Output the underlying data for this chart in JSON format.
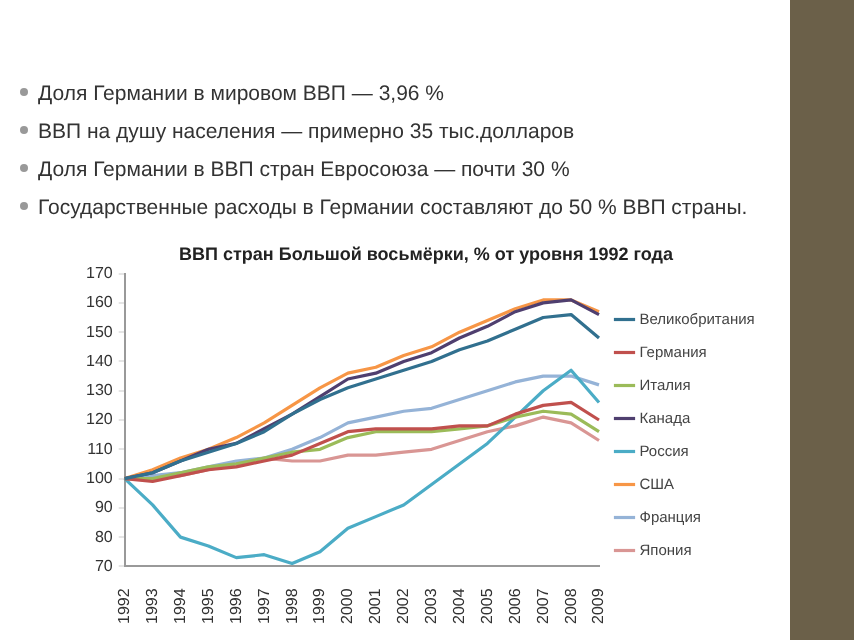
{
  "chart_data": {
    "type": "line",
    "title": "ВВП стран Большой восьмёрки, % от уровня 1992 года",
    "annotations": [
      "Доля Германии в мировом ВВП — 3,96 %",
      "ВВП на душу населения — примерно 35 тыс.долларов",
      "Доля Германии в ВВП стран Евросоюза — почти 30 %",
      "Государственные расходы в Германии составляют до 50 % ВВП страны."
    ],
    "categories": [
      "1992",
      "1993",
      "1994",
      "1995",
      "1996",
      "1997",
      "1998",
      "1999",
      "2000",
      "2001",
      "2002",
      "2003",
      "2004",
      "2005",
      "2006",
      "2007",
      "2008",
      "2009"
    ],
    "series": [
      {
        "name": "Великобритания",
        "color": "#31708f",
        "values": [
          100,
          102,
          106,
          109,
          112,
          116,
          122,
          127,
          131,
          134,
          137,
          140,
          144,
          147,
          151,
          155,
          156,
          148
        ]
      },
      {
        "name": "Германия",
        "color": "#c0504d",
        "values": [
          100,
          99,
          101,
          103,
          104,
          106,
          108,
          112,
          116,
          117,
          117,
          117,
          118,
          118,
          122,
          125,
          126,
          120
        ]
      },
      {
        "name": "Италия",
        "color": "#9bbb59",
        "values": [
          100,
          100,
          102,
          104,
          105,
          107,
          109,
          110,
          114,
          116,
          116,
          116,
          117,
          118,
          121,
          123,
          122,
          116
        ]
      },
      {
        "name": "Канада",
        "color": "#4f3f6f",
        "values": [
          100,
          102,
          106,
          110,
          112,
          117,
          122,
          128,
          134,
          136,
          140,
          143,
          148,
          152,
          157,
          160,
          161,
          156
        ]
      },
      {
        "name": "Россия",
        "color": "#4bacc6",
        "values": [
          100,
          91,
          80,
          77,
          73,
          74,
          71,
          75,
          83,
          87,
          91,
          98,
          105,
          112,
          121,
          130,
          137,
          126
        ]
      },
      {
        "name": "США",
        "color": "#f79646",
        "values": [
          100,
          103,
          107,
          110,
          114,
          119,
          125,
          131,
          136,
          138,
          142,
          145,
          150,
          154,
          158,
          161,
          161,
          157
        ]
      },
      {
        "name": "Франция",
        "color": "#95b3d7",
        "values": [
          100,
          101,
          102,
          104,
          106,
          107,
          110,
          114,
          119,
          121,
          123,
          124,
          127,
          130,
          133,
          135,
          135,
          132
        ]
      },
      {
        "name": "Япония",
        "color": "#d99694",
        "values": [
          100,
          100,
          101,
          103,
          105,
          107,
          106,
          106,
          108,
          108,
          109,
          110,
          113,
          116,
          118,
          121,
          119,
          113
        ]
      }
    ],
    "ylim": [
      70,
      170
    ],
    "yticks": [
      70,
      80,
      90,
      100,
      110,
      120,
      130,
      140,
      150,
      160,
      170
    ],
    "grid": false,
    "legend": "right",
    "marker": "none",
    "line_style": "solid"
  }
}
